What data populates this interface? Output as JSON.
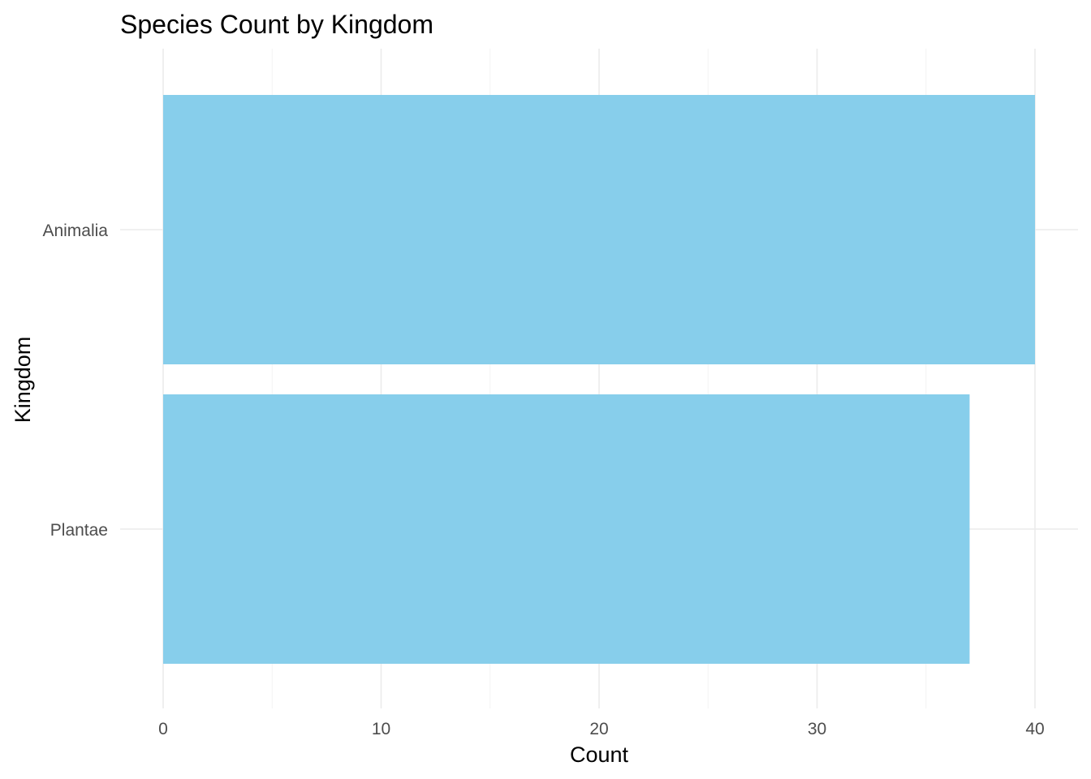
{
  "chart_data": {
    "type": "bar",
    "orientation": "horizontal",
    "title": "Species Count by Kingdom",
    "xlabel": "Count",
    "ylabel": "Kingdom",
    "categories": [
      "Animalia",
      "Plantae"
    ],
    "values": [
      40,
      37
    ],
    "xlim": [
      0,
      40
    ],
    "x_ticks": [
      0,
      10,
      20,
      30,
      40
    ],
    "x_tick_labels": [
      "0",
      "10",
      "20",
      "30",
      "40"
    ],
    "grid": true,
    "legend": "none",
    "bar_color": "#87CEEB"
  }
}
